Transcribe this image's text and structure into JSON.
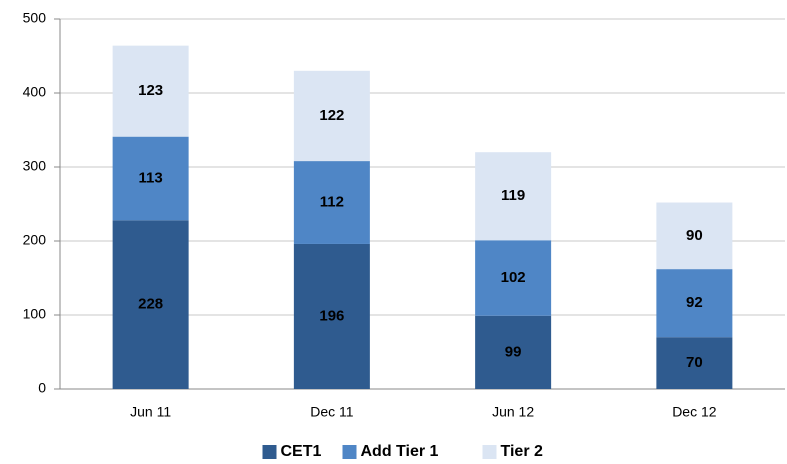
{
  "chart_data": {
    "type": "bar",
    "stacked": true,
    "categories": [
      "Jun 11",
      "Dec 11",
      "Jun 12",
      "Dec 12"
    ],
    "series": [
      {
        "name": "CET1",
        "color": "#2f5b8f",
        "values": [
          228,
          196,
          99,
          70
        ]
      },
      {
        "name": "Add Tier 1",
        "color": "#4f86c6",
        "values": [
          113,
          112,
          102,
          92
        ]
      },
      {
        "name": "Tier 2",
        "color": "#dbe5f3",
        "values": [
          123,
          122,
          119,
          90
        ]
      }
    ],
    "ylim": [
      0,
      500
    ],
    "yticks": [
      0,
      100,
      200,
      300,
      400,
      500
    ],
    "grid": true,
    "legend": "bottom"
  }
}
